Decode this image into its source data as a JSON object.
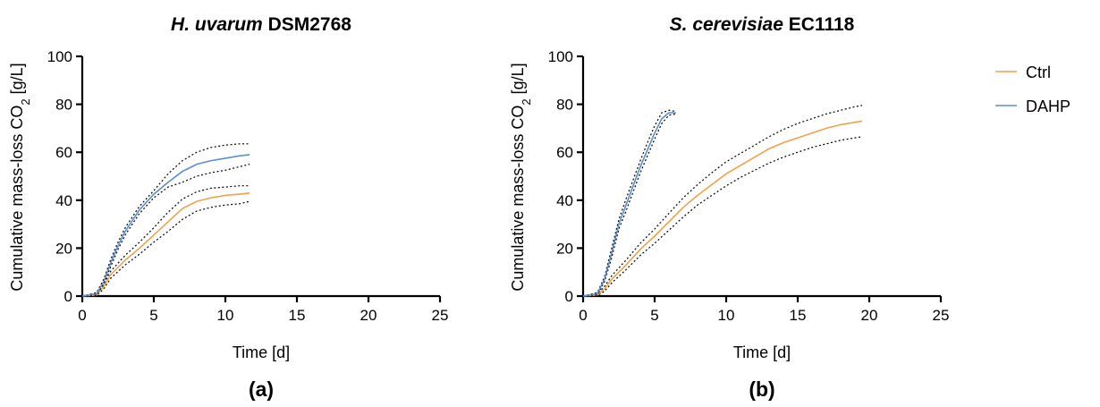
{
  "colors": {
    "ctrl": "#F2A14A",
    "dahp": "#5B8FC9",
    "axis": "#000000"
  },
  "legend": [
    {
      "name": "Ctrl",
      "color": "#F2A14A"
    },
    {
      "name": "DAHP",
      "color": "#5B8FC9"
    }
  ],
  "chart_data": [
    {
      "type": "line",
      "title_italic": "H. uvarum",
      "title_bold": "DSM2768",
      "panel_label": "(a)",
      "xlabel": "Time [d]",
      "ylabel_main": "Cumulative mass-loss CO",
      "ylabel_sub": "2",
      "ylabel_unit": " [g/L]",
      "xlim": [
        0,
        25
      ],
      "ylim": [
        0,
        100
      ],
      "xticks": [
        "0",
        "5",
        "10",
        "15",
        "20",
        "25"
      ],
      "yticks": [
        "0",
        "20",
        "40",
        "60",
        "80",
        "100"
      ],
      "series": [
        {
          "name": "Ctrl",
          "x": [
            0,
            1,
            1.5,
            2,
            3,
            4,
            5,
            6,
            7,
            8,
            9,
            10,
            11,
            11.7
          ],
          "y": [
            0,
            0.5,
            4,
            9,
            15,
            20,
            25.5,
            31,
            36.5,
            39.5,
            41,
            42,
            42.5,
            43
          ],
          "upper": [
            0,
            0.8,
            5,
            10.5,
            17,
            22.5,
            28.5,
            35,
            40.5,
            43.5,
            45,
            45.5,
            46,
            46
          ],
          "lower": [
            0,
            0.2,
            3,
            7.5,
            13,
            17.5,
            22.5,
            27,
            32,
            35.5,
            37,
            38,
            38.5,
            39.5
          ]
        },
        {
          "name": "DAHP",
          "x": [
            0,
            1,
            1.5,
            2,
            2.5,
            3,
            4,
            5,
            6,
            7,
            8,
            9,
            10,
            11,
            11.7
          ],
          "y": [
            0,
            1,
            6,
            14,
            21,
            27,
            36,
            42.5,
            47.5,
            52,
            55,
            56.5,
            57.5,
            58.5,
            59
          ],
          "upper": [
            0,
            1.5,
            7,
            15.5,
            22.5,
            28.5,
            37.5,
            44,
            51,
            56.5,
            60,
            62,
            63,
            63.5,
            63.5
          ],
          "lower": [
            0,
            0.5,
            5,
            12.5,
            19.5,
            25.5,
            34.5,
            41,
            45.5,
            47.5,
            50,
            51.5,
            52.5,
            54,
            55
          ]
        }
      ]
    },
    {
      "type": "line",
      "title_italic": "S. cerevisiae",
      "title_bold": "EC1118",
      "panel_label": "(b)",
      "xlabel": "Time [d]",
      "ylabel_main": "Cumulative mass-loss CO",
      "ylabel_sub": "2",
      "ylabel_unit": " [g/L]",
      "xlim": [
        0,
        25
      ],
      "ylim": [
        0,
        100
      ],
      "xticks": [
        "0",
        "5",
        "10",
        "15",
        "20",
        "25"
      ],
      "yticks": [
        "0",
        "20",
        "40",
        "60",
        "80",
        "100"
      ],
      "series": [
        {
          "name": "Ctrl",
          "x": [
            0,
            1,
            1.5,
            2,
            3,
            4,
            5,
            6,
            7,
            8,
            9,
            10,
            11,
            12,
            13,
            14,
            15,
            16,
            17,
            18,
            19,
            19.5
          ],
          "y": [
            0,
            0.5,
            3,
            7,
            13,
            19.5,
            25,
            31,
            37,
            42,
            46.5,
            51,
            54.5,
            58,
            61.5,
            64,
            66,
            68,
            70,
            71.5,
            72.5,
            73
          ],
          "upper": [
            0,
            1,
            4,
            8.5,
            15,
            22,
            28,
            34.5,
            41,
            46.5,
            51.5,
            56,
            59.5,
            63,
            66.5,
            69.5,
            72,
            74,
            76,
            77.5,
            79,
            79.5
          ],
          "lower": [
            0,
            0.2,
            2,
            5.5,
            11,
            17,
            22,
            27.5,
            33,
            38,
            42,
            46,
            49.5,
            52.5,
            55.5,
            58,
            60,
            62,
            63.5,
            65,
            66,
            66.5
          ]
        },
        {
          "name": "DAHP",
          "x": [
            0,
            1,
            1.5,
            2,
            2.5,
            3,
            3.5,
            4,
            4.5,
            5,
            5.5,
            6,
            6.5
          ],
          "y": [
            0,
            1,
            7,
            18,
            30,
            38,
            46,
            54,
            61,
            68,
            74,
            76.5,
            76.5
          ],
          "upper": [
            0,
            1.5,
            8,
            20,
            32,
            40.5,
            48.5,
            56.5,
            64,
            71,
            76.5,
            77.5,
            77
          ],
          "lower": [
            0,
            0.5,
            6,
            16,
            28,
            35.5,
            43.5,
            51.5,
            58.5,
            65.5,
            72,
            75.5,
            76
          ]
        }
      ]
    }
  ]
}
